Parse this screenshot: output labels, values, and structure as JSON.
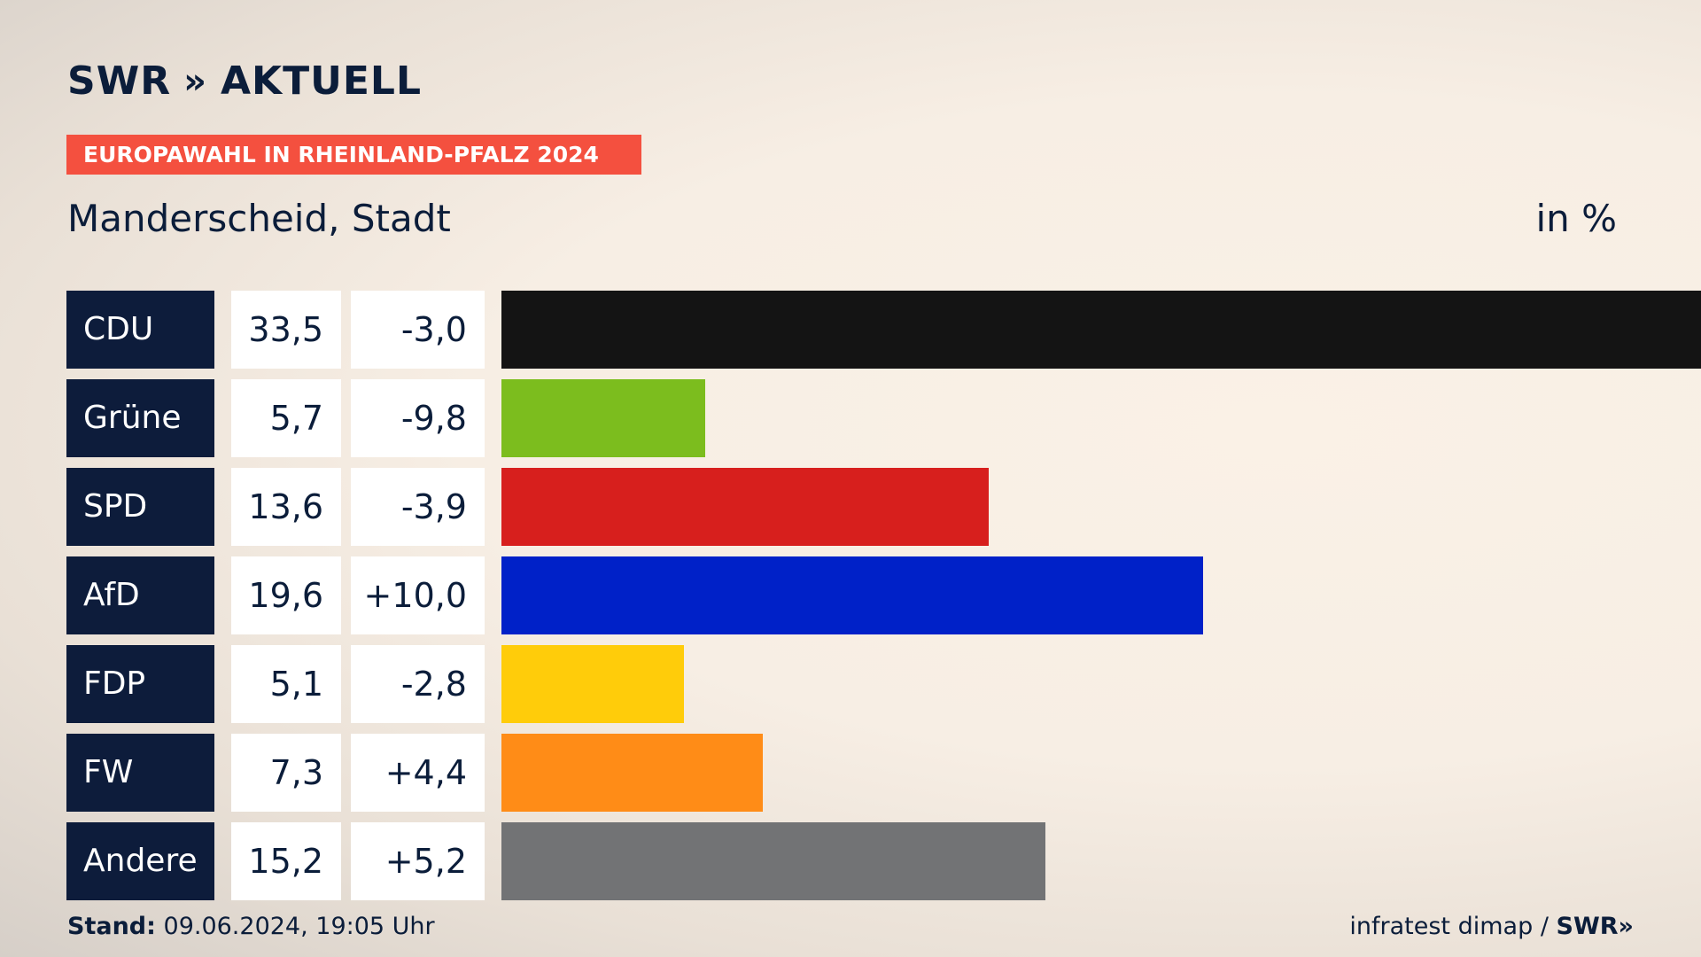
{
  "brand": {
    "swr": "SWR",
    "chevrons": "»",
    "aktuell": "AKTUELL"
  },
  "banner": "EUROPAWAHL IN RHEINLAND-PFALZ 2024",
  "place": "Manderscheid, Stadt",
  "unit": "in %",
  "footer": {
    "stand_label": "Stand:",
    "stand_value": "09.06.2024, 19:05 Uhr",
    "source": "infratest dimap",
    "separator": "/",
    "source_brand": "SWR»"
  },
  "chart_data": {
    "type": "bar",
    "orientation": "horizontal",
    "categories": [
      "CDU",
      "Grüne",
      "SPD",
      "AfD",
      "FDP",
      "FW",
      "Andere"
    ],
    "values": [
      33.5,
      5.7,
      13.6,
      19.6,
      5.1,
      7.3,
      15.2
    ],
    "value_labels": [
      "33,5",
      "5,7",
      "13,6",
      "19,6",
      "5,1",
      "7,3",
      "15,2"
    ],
    "diff_labels": [
      "-3,0",
      "-9,8",
      "-3,9",
      "+10,0",
      "-2,8",
      "+4,4",
      "+5,2"
    ],
    "colors": [
      "#141414",
      "#7cbd1e",
      "#d71f1d",
      "#0021c8",
      "#ffcc0a",
      "#ff8c17",
      "#727375"
    ],
    "xlim": [
      0,
      33.5
    ]
  }
}
